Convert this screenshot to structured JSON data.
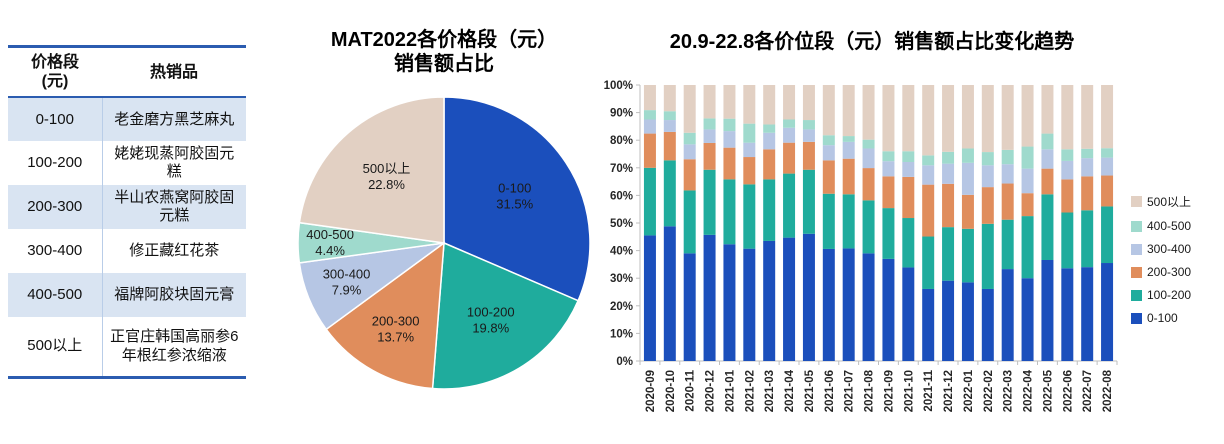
{
  "colors": {
    "table_border": "#2B5CB0",
    "table_row_alt": "#D9E4F2",
    "table_divider": "#B9CDE8",
    "axis": "#BFBFBF",
    "axis_text": "#262626",
    "segment_colors": {
      "0-100": "#1B4FBC",
      "100-200": "#1FAC9D",
      "200-300": "#E08D5C",
      "300-400": "#B6C6E4",
      "400-500": "#9FDACD",
      "500以上": "#E2D0C3"
    }
  },
  "table": {
    "col1_header_line1": "价格段",
    "col1_header_line2": "(元)",
    "col2_header": "热销品",
    "rows": [
      {
        "range": "0-100",
        "product": "老金磨方黑芝麻丸"
      },
      {
        "range": "100-200",
        "product": "姥姥现蒸阿胶固元糕"
      },
      {
        "range": "200-300",
        "product": "半山农燕窝阿胶固元糕"
      },
      {
        "range": "300-400",
        "product": "修正藏红花茶"
      },
      {
        "range": "400-500",
        "product": "福牌阿胶块固元膏"
      },
      {
        "range": "500以上",
        "product": "正官庄韩国高丽参6年根红参浓缩液"
      }
    ]
  },
  "pie_chart": {
    "title_line1": "MAT2022各价格段（元）",
    "title_line2": "销售额占比"
  },
  "bar_chart": {
    "title": "20.9-22.8各价位段（元）销售额占比变化趋势"
  },
  "chart_data": [
    {
      "type": "pie",
      "title": "MAT2022各价格段（元）销售额占比",
      "categories": [
        "0-100",
        "100-200",
        "200-300",
        "300-400",
        "400-500",
        "500以上"
      ],
      "values": [
        31.5,
        19.8,
        13.7,
        7.9,
        4.4,
        22.8
      ],
      "unit": "%",
      "start_angle": "top",
      "direction": "clockwise",
      "colors": [
        "#1B4FBC",
        "#1FAC9D",
        "#E08D5C",
        "#B6C6E4",
        "#9FDACD",
        "#E2D0C3"
      ],
      "label_radius_factors": [
        0.58,
        0.62,
        0.68,
        0.72,
        0.78,
        0.6
      ]
    },
    {
      "type": "bar",
      "stacked": true,
      "percent": true,
      "title": "20.9-22.8各价位段（元）销售额占比变化趋势",
      "categories": [
        "2020-09",
        "2020-10",
        "2020-11",
        "2020-12",
        "2021-01",
        "2021-02",
        "2021-03",
        "2021-04",
        "2021-05",
        "2021-06",
        "2021-07",
        "2021-08",
        "2021-09",
        "2021-10",
        "2021-11",
        "2021-12",
        "2022-01",
        "2022-02",
        "2022-03",
        "2022-04",
        "2022-05",
        "2022-06",
        "2022-07",
        "2022-08"
      ],
      "series": [
        {
          "name": "0-100",
          "color": "#1B4FBC",
          "values": [
            45.5,
            48.8,
            39.0,
            45.7,
            42.3,
            40.7,
            43.5,
            44.7,
            46.1,
            40.6,
            40.8,
            39.0,
            37.0,
            33.9,
            26.1,
            29.1,
            28.5,
            26.1,
            33.3,
            30.0,
            36.6,
            33.6,
            34.0,
            35.5
          ]
        },
        {
          "name": "100-200",
          "color": "#1FAC9D",
          "values": [
            24.5,
            23.9,
            22.8,
            23.6,
            23.5,
            23.3,
            22.3,
            23.2,
            23.2,
            20.0,
            19.6,
            19.2,
            18.4,
            17.9,
            19.0,
            19.4,
            19.4,
            23.6,
            17.9,
            22.5,
            23.8,
            20.2,
            20.6,
            20.5
          ]
        },
        {
          "name": "200-300",
          "color": "#E08D5C",
          "values": [
            12.4,
            10.3,
            11.3,
            9.7,
            11.5,
            9.9,
            10.9,
            11.2,
            10.1,
            12.1,
            12.9,
            11.7,
            11.5,
            14.9,
            18.8,
            15.7,
            12.3,
            13.3,
            13.1,
            8.3,
            9.3,
            12.0,
            12.3,
            11.2
          ]
        },
        {
          "name": "300-400",
          "color": "#B6C6E4",
          "values": [
            5.1,
            4.3,
            5.4,
            4.9,
            6.0,
            5.2,
            6.0,
            5.4,
            4.5,
            5.5,
            6.1,
            7.1,
            5.5,
            5.4,
            7.0,
            7.3,
            11.6,
            7.9,
            7.0,
            8.9,
            7.0,
            6.7,
            6.6,
            6.5
          ]
        },
        {
          "name": "400-500",
          "color": "#9FDACD",
          "values": [
            3.4,
            3.2,
            4.2,
            4.0,
            4.5,
            6.9,
            3.0,
            3.0,
            3.4,
            3.6,
            2.1,
            3.2,
            3.6,
            3.9,
            3.6,
            4.3,
            5.2,
            4.8,
            5.2,
            8.0,
            5.7,
            4.2,
            3.4,
            3.4
          ]
        },
        {
          "name": "500以上",
          "color": "#E2D0C3",
          "values": [
            9.1,
            9.5,
            17.3,
            12.1,
            12.2,
            14.0,
            14.3,
            12.5,
            12.7,
            18.2,
            18.5,
            19.8,
            24.0,
            24.0,
            25.5,
            24.2,
            23.0,
            24.3,
            23.5,
            22.3,
            17.6,
            23.3,
            23.1,
            22.9
          ]
        }
      ],
      "ylim": [
        0,
        100
      ],
      "y_ticks": [
        "0%",
        "10%",
        "20%",
        "30%",
        "40%",
        "50%",
        "60%",
        "70%",
        "80%",
        "90%",
        "100%"
      ],
      "grid": false,
      "legend_position": "right",
      "legend_top_to_bottom": [
        "500以上",
        "400-500",
        "300-400",
        "200-300",
        "100-200",
        "0-100"
      ]
    }
  ]
}
